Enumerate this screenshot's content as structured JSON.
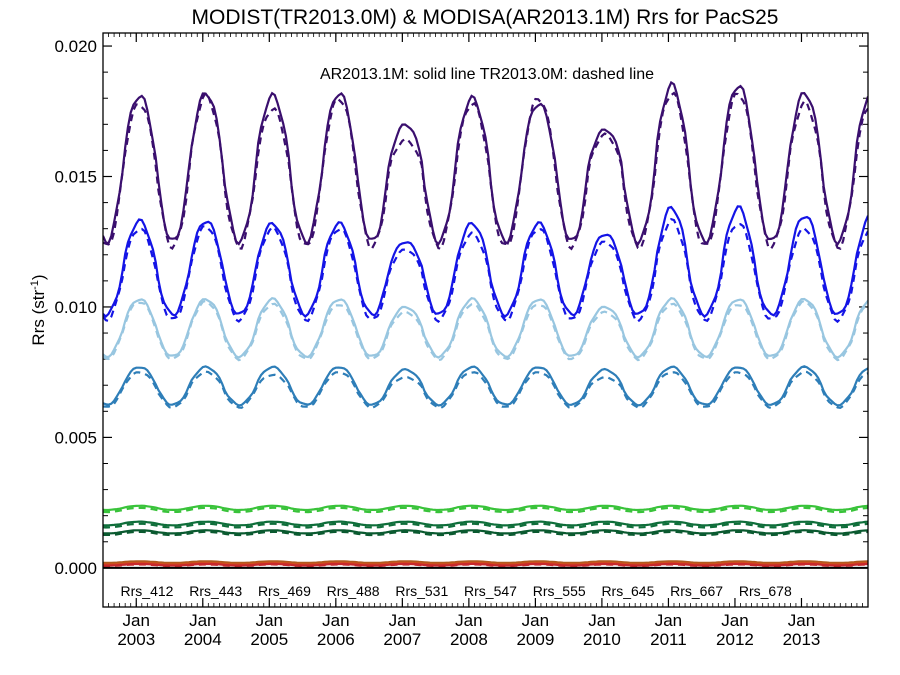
{
  "chart_data": {
    "type": "line",
    "title": "MODIST(TR2013.0M) & MODISA(AR2013.1M)  Rrs for PacS25",
    "annotation": "AR2013.1M: solid line   TR2013.0M: dashed line",
    "ylabel": "Rrs (str",
    "ylabel_sup": "-1",
    "ylabel_close": ")",
    "ylim": [
      -0.0015,
      0.0205
    ],
    "xlim": [
      2002.5,
      2014.0
    ],
    "yticks": [
      {
        "value": 0.0,
        "label": "0.000"
      },
      {
        "value": 0.005,
        "label": "0.005"
      },
      {
        "value": 0.01,
        "label": "0.010"
      },
      {
        "value": 0.015,
        "label": "0.015"
      },
      {
        "value": 0.02,
        "label": "0.020"
      }
    ],
    "xticks": [
      {
        "value": 2003,
        "month": "Jan",
        "year": "2003"
      },
      {
        "value": 2004,
        "month": "Jan",
        "year": "2004"
      },
      {
        "value": 2005,
        "month": "Jan",
        "year": "2005"
      },
      {
        "value": 2006,
        "month": "Jan",
        "year": "2006"
      },
      {
        "value": 2007,
        "month": "Jan",
        "year": "2007"
      },
      {
        "value": 2008,
        "month": "Jan",
        "year": "2008"
      },
      {
        "value": 2009,
        "month": "Jan",
        "year": "2009"
      },
      {
        "value": 2010,
        "month": "Jan",
        "year": "2010"
      },
      {
        "value": 2011,
        "month": "Jan",
        "year": "2011"
      },
      {
        "value": 2012,
        "month": "Jan",
        "year": "2012"
      },
      {
        "value": 2013,
        "month": "Jan",
        "year": "2013"
      }
    ],
    "grid": false,
    "legend_position": "bottom",
    "line_styles": {
      "AR2013.1M": "solid",
      "TR2013.0M": "dashed"
    },
    "series": [
      {
        "name": "Rrs_412",
        "color": "#3a0f6e",
        "phase": 2003.05,
        "solid": {
          "mean": 0.0155,
          "amp": 0.003
        },
        "dashed": {
          "mean": 0.0153,
          "amp": 0.003
        },
        "solid_peaks": [
          0.0181,
          0.0182,
          0.0181,
          0.0182,
          0.017,
          0.018,
          0.0178,
          0.0168,
          0.0185,
          0.0185,
          0.0182
        ],
        "dashed_peaks": [
          0.0178,
          0.0181,
          0.0176,
          0.018,
          0.0164,
          0.0178,
          0.018,
          0.0166,
          0.0182,
          0.0182,
          0.0178
        ]
      },
      {
        "name": "Rrs_443",
        "color": "#1414e6",
        "phase": 2003.05,
        "solid": {
          "mean": 0.0115,
          "amp": 0.0018
        },
        "dashed": {
          "mean": 0.0113,
          "amp": 0.0018
        },
        "solid_peaks": [
          0.0133,
          0.0133,
          0.0132,
          0.0132,
          0.0125,
          0.0132,
          0.0132,
          0.0128,
          0.0138,
          0.0138,
          0.0135
        ],
        "dashed_peaks": [
          0.013,
          0.0131,
          0.013,
          0.013,
          0.0122,
          0.0128,
          0.013,
          0.0125,
          0.0133,
          0.0132,
          0.013
        ]
      },
      {
        "name": "Rrs_469",
        "color": "#98c6e0",
        "phase": 2003.05,
        "solid": {
          "mean": 0.0092,
          "amp": 0.0011
        },
        "dashed": {
          "mean": 0.0091,
          "amp": 0.0011
        },
        "solid_peaks": [
          0.0103,
          0.0103,
          0.0103,
          0.0103,
          0.01,
          0.0103,
          0.0103,
          0.01,
          0.0103,
          0.0103,
          0.0103
        ],
        "dashed_peaks": [
          0.0102,
          0.0102,
          0.0101,
          0.0101,
          0.0098,
          0.0101,
          0.0101,
          0.0098,
          0.0101,
          0.0101,
          0.0102
        ]
      },
      {
        "name": "Rrs_488",
        "color": "#2e7eb8",
        "phase": 2003.05,
        "solid": {
          "mean": 0.007,
          "amp": 0.00075
        },
        "dashed": {
          "mean": 0.0069,
          "amp": 0.00075
        },
        "solid_peaks": [
          0.0077,
          0.0077,
          0.0077,
          0.0077,
          0.0076,
          0.0077,
          0.0077,
          0.0076,
          0.0077,
          0.0077,
          0.0077
        ],
        "dashed_peaks": [
          0.0075,
          0.0075,
          0.0074,
          0.0075,
          0.0073,
          0.0075,
          0.0075,
          0.0073,
          0.0075,
          0.0075,
          0.0075
        ]
      },
      {
        "name": "Rrs_531",
        "color": "#39c33a",
        "phase": 2003.05,
        "solid": {
          "mean": 0.0023,
          "amp": 8e-05
        },
        "dashed": {
          "mean": 0.00222,
          "amp": 8e-05
        }
      },
      {
        "name": "Rrs_547",
        "color": "#0f6e3a",
        "phase": 2003.05,
        "solid": {
          "mean": 0.0017,
          "amp": 7e-05
        },
        "dashed": {
          "mean": 0.00162,
          "amp": 7e-05
        }
      },
      {
        "name": "Rrs_555",
        "color": "#0b5a30",
        "phase": 2003.05,
        "solid": {
          "mean": 0.00138,
          "amp": 6e-05
        },
        "dashed": {
          "mean": 0.00132,
          "amp": 6e-05
        }
      },
      {
        "name": "Rrs_645",
        "color": "#b05a1e",
        "phase": 2003.05,
        "solid": {
          "mean": 0.00022,
          "amp": 3e-05
        },
        "dashed": {
          "mean": 0.00018,
          "amp": 3e-05
        }
      },
      {
        "name": "Rrs_667",
        "color": "#d2501e",
        "phase": 2003.05,
        "solid": {
          "mean": 0.00016,
          "amp": 3e-05
        },
        "dashed": {
          "mean": 0.00013,
          "amp": 3e-05
        }
      },
      {
        "name": "Rrs_678",
        "color": "#c8282d",
        "phase": 2003.05,
        "solid": {
          "mean": 0.00012,
          "amp": 3e-05
        },
        "dashed": {
          "mean": 0.0001,
          "amp": 3e-05
        }
      }
    ]
  }
}
